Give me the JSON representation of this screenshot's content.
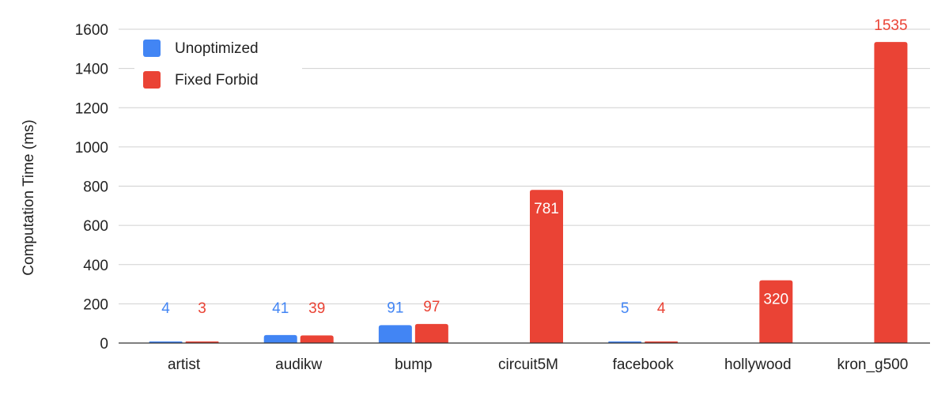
{
  "chart_data": {
    "type": "bar",
    "title": "",
    "xlabel": "",
    "ylabel": "Computation Time (ms)",
    "ylim": [
      0,
      1600
    ],
    "yticks": [
      0,
      200,
      400,
      600,
      800,
      1000,
      1200,
      1400,
      1600
    ],
    "grid": true,
    "legend_position": "top-left",
    "categories": [
      "artist",
      "audikw",
      "bump",
      "circuit5M",
      "facebook",
      "hollywood",
      "kron_g500"
    ],
    "series": [
      {
        "name": "Unoptimized",
        "color": "#4285F4",
        "values": [
          4,
          41,
          91,
          null,
          5,
          null,
          null
        ],
        "labels": [
          "4",
          "41",
          "91",
          null,
          "5",
          null,
          null
        ]
      },
      {
        "name": "Fixed Forbid",
        "color": "#EA4335",
        "values": [
          3,
          39,
          97,
          781,
          4,
          320,
          1535
        ],
        "labels": [
          "3",
          "39",
          "97",
          "781",
          "4",
          "320",
          "1535"
        ]
      }
    ]
  }
}
